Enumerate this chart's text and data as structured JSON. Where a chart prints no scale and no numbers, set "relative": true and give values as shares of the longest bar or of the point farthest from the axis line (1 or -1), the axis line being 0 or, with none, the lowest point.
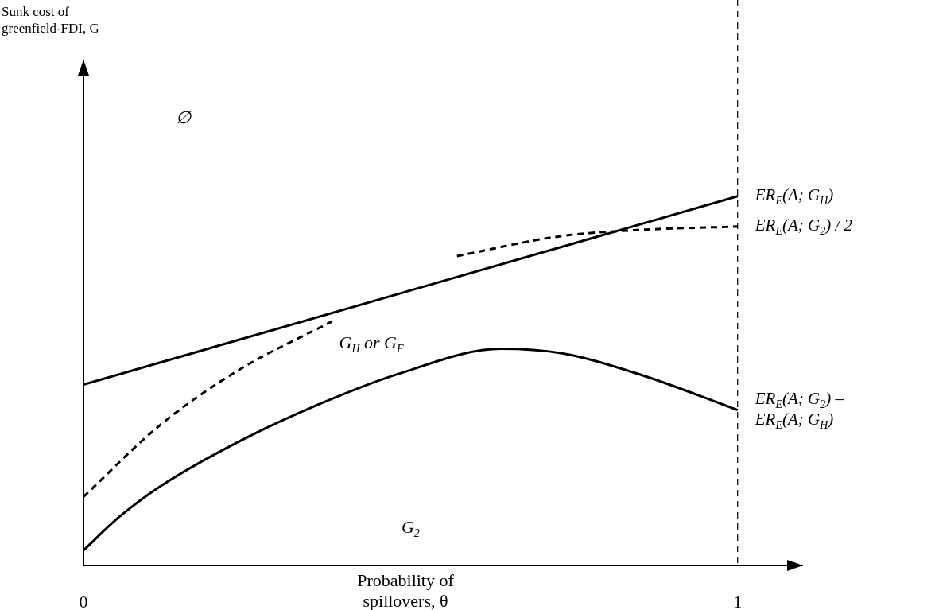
{
  "chart_data": {
    "type": "line",
    "relative": true,
    "xlabel": "Probability of spillovers, θ",
    "xlim": [
      0,
      1.1
    ],
    "xticks": [
      0,
      1
    ],
    "grid": false,
    "legend": false,
    "marker": "none",
    "tick_labels": "x",
    "series": [
      {
        "name": "ER$_{E}$(A; G$_{H}$)",
        "color": "#000000",
        "line_style": "solid",
        "x": [
          0,
          1
        ],
        "values": [
          0.49,
          1.0
        ]
      },
      {
        "name": "ER$_{E}$(A; G$_{2}$) / 2",
        "color": "#000000",
        "line_style": "dashed",
        "x": [
          0,
          0.117,
          0.239,
          0.38,
          0.47,
          0.571,
          0.73,
          0.853,
          1
        ],
        "values": [
          0.186,
          0.38,
          0.531,
          0.661,
          null,
          0.838,
          0.892,
          0.909,
          0.918
        ]
      },
      {
        "name": "ER$_{E}$(A; G$_{2}$) – ER$_{E}$(A; G$_{H}$)",
        "color": "#000000",
        "line_style": "solid",
        "x": [
          0,
          0.055,
          0.117,
          0.239,
          0.362,
          0.485,
          0.638,
          0.73,
          0.853,
          1
        ],
        "values": [
          0.041,
          0.132,
          0.214,
          0.337,
          0.438,
          0.521,
          0.587,
          0.575,
          0.516,
          0.421
        ]
      }
    ],
    "ref_lines": [
      {
        "axis": "x",
        "value": 1,
        "line_style": "dashed",
        "color": "#000000"
      }
    ],
    "annotations": [
      "Sunk cost of greenfield-FDI, G",
      "∅",
      "G$_{H}$ or G$_{F}$",
      "G$_{2}$"
    ]
  }
}
